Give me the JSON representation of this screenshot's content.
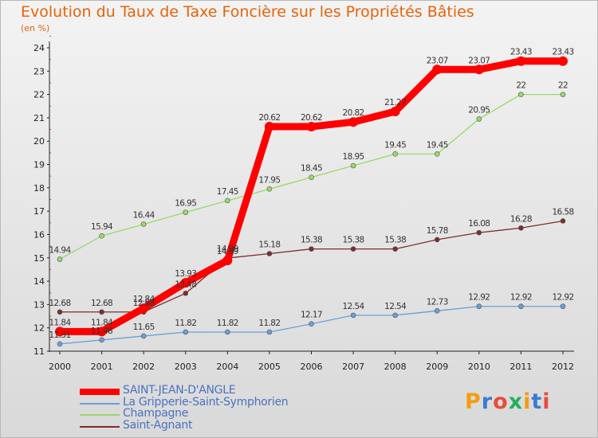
{
  "title": "Evolution du Taux de Taxe Foncière sur les Propriétés Bâties",
  "unit": "(en %)",
  "logo": {
    "text": "Proxiti",
    "letter_colors": [
      "#f39c12",
      "#3a7bd5",
      "#e74c3c",
      "#27ae60",
      "#f39c12",
      "#3a7bd5",
      "#e74c3c"
    ]
  },
  "chart_data": {
    "type": "line",
    "x": [
      2000,
      2001,
      2002,
      2003,
      2004,
      2005,
      2006,
      2007,
      2008,
      2009,
      2010,
      2011,
      2012
    ],
    "ylim": [
      11,
      24
    ],
    "yticks": [
      11,
      12,
      13,
      14,
      15,
      16,
      17,
      18,
      19,
      20,
      21,
      22,
      23,
      24
    ],
    "grid": false,
    "legend_placement": "bottom-left",
    "series": [
      {
        "name": "SAINT-JEAN-D'ANGLE",
        "color": "#ff0000",
        "values": [
          11.84,
          11.84,
          12.84,
          13.93,
          14.89,
          20.62,
          20.62,
          20.82,
          21.27,
          23.07,
          23.07,
          23.43,
          23.43
        ]
      },
      {
        "name": "La Gripperie-Saint-Symphorien",
        "color": "#6b9fd4",
        "values": [
          11.31,
          11.48,
          11.65,
          11.82,
          11.82,
          11.82,
          12.17,
          12.54,
          12.54,
          12.73,
          12.92,
          12.92,
          12.92
        ]
      },
      {
        "name": "Champagne",
        "color": "#9ad86a",
        "values": [
          14.94,
          15.94,
          16.44,
          16.95,
          17.45,
          17.95,
          18.45,
          18.95,
          19.45,
          19.45,
          20.95,
          22,
          22
        ]
      },
      {
        "name": "Saint-Agnant",
        "color": "#7b2e2e",
        "values": [
          12.68,
          12.68,
          12.68,
          13.48,
          14.99,
          15.18,
          15.38,
          15.38,
          15.38,
          15.78,
          16.08,
          16.28,
          16.58
        ]
      }
    ]
  }
}
